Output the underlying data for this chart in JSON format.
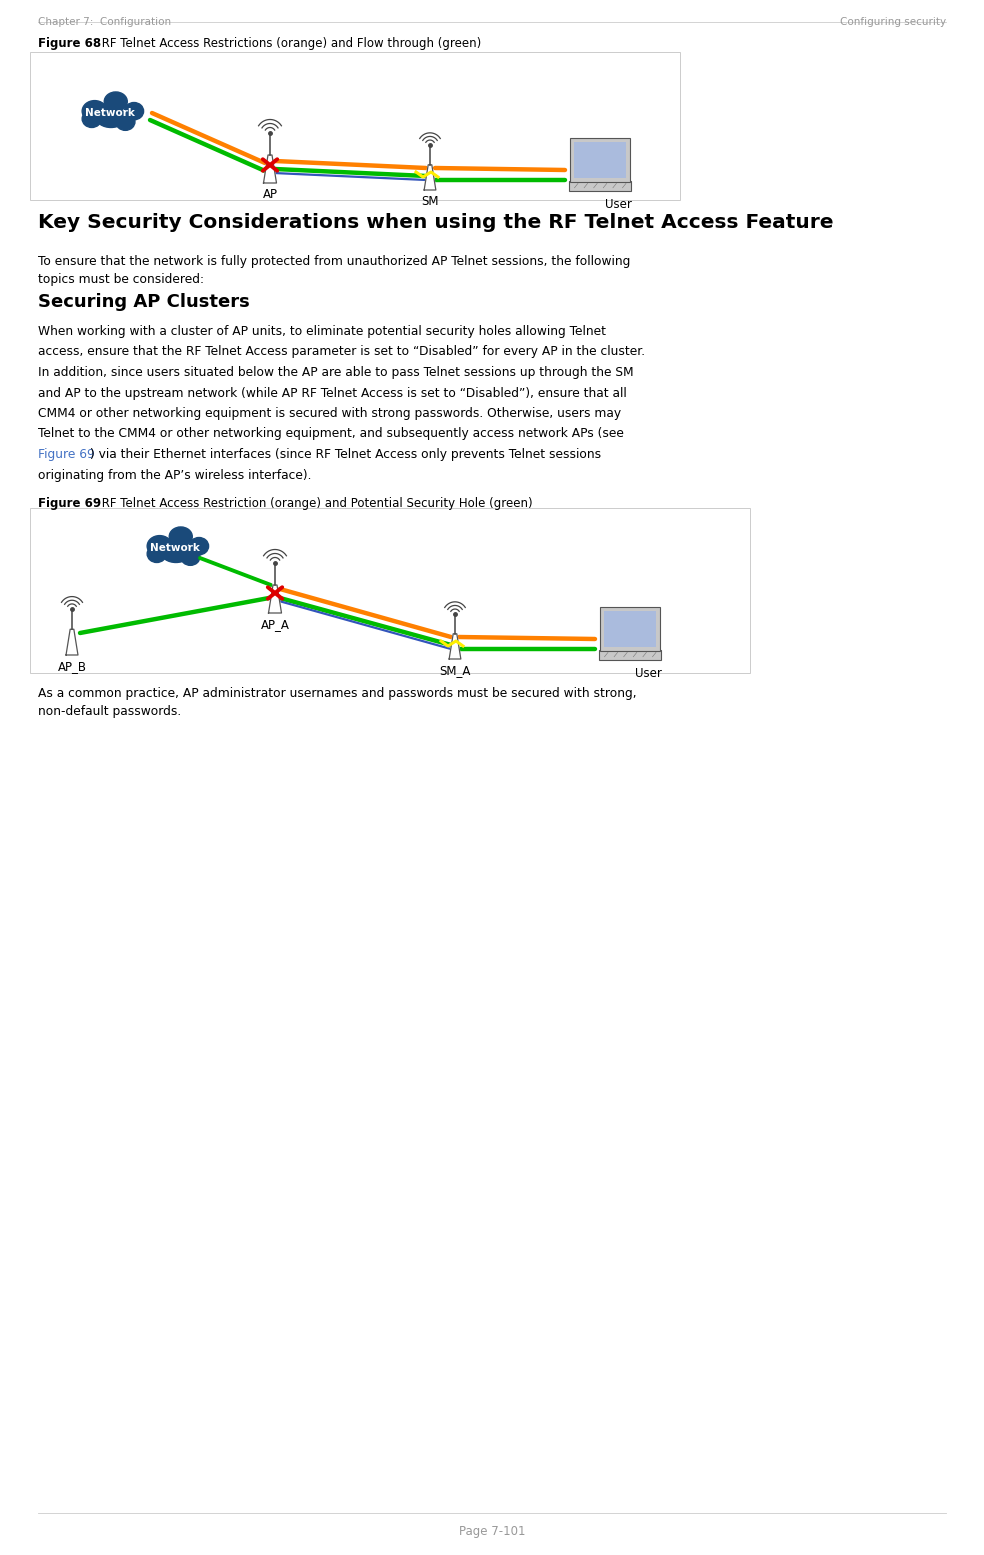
{
  "page_width": 9.84,
  "page_height": 15.55,
  "bg_color": "#ffffff",
  "header_left": "Chapter 7:  Configuration",
  "header_right": "Configuring security",
  "footer_text": "Page 7-101",
  "header_color": "#999999",
  "fig68_label": "Figure 68",
  "fig68_title": " RF Telnet Access Restrictions (orange) and Flow through (green)",
  "fig69_label": "Figure 69",
  "fig69_title": " RF Telnet Access Restriction (orange) and Potential Security Hole (green)",
  "section_title": "Key Security Considerations when using the RF Telnet Access Feature",
  "subsection_title": "Securing AP Clusters",
  "orange_color": "#FF8000",
  "green_color": "#00BB00",
  "blue_color": "#0000CC",
  "yellow_color": "#FFEE00",
  "red_color": "#DD0000",
  "link_color": "#4472C4",
  "text_color": "#000000",
  "cloud_color": "#1a4a7a",
  "tower_color": "#888888",
  "tower_fill": "#ffffff",
  "laptop_body": "#c8c8c8",
  "laptop_screen": "#aabbdd"
}
